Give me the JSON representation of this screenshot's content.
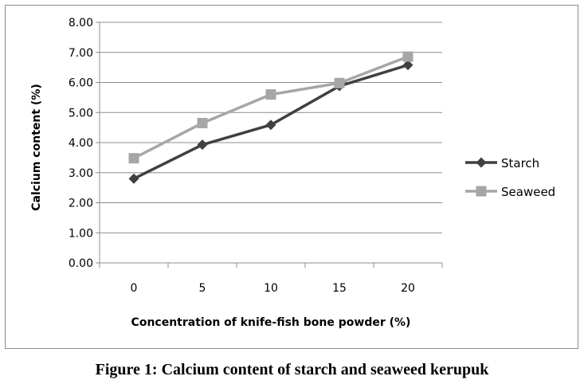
{
  "caption": "Figure 1: Calcium content of starch and seaweed kerupuk",
  "chart_data": {
    "type": "line",
    "title": "",
    "xlabel": "Concentration of knife-fish bone powder (%)",
    "ylabel": "Calcium content (%)",
    "categories": [
      "0",
      "5",
      "10",
      "15",
      "20"
    ],
    "ylim": [
      0,
      8
    ],
    "yticks": [
      "0.00",
      "1.00",
      "2.00",
      "3.00",
      "4.00",
      "5.00",
      "6.00",
      "7.00",
      "8.00"
    ],
    "grid": "horizontal",
    "legend_position": "right",
    "series": [
      {
        "name": "Starch",
        "values": [
          2.8,
          3.93,
          4.59,
          5.88,
          6.58
        ],
        "color": "#404040",
        "marker": "diamond"
      },
      {
        "name": "Seaweed",
        "values": [
          3.48,
          4.65,
          5.6,
          5.98,
          6.86
        ],
        "color": "#a6a6a6",
        "marker": "square"
      }
    ]
  }
}
